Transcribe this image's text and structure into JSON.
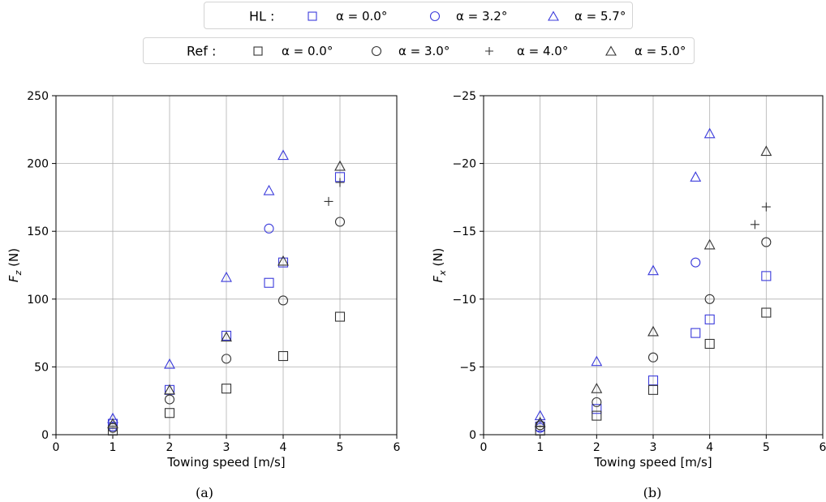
{
  "colors": {
    "hl": "#3b3bdb",
    "ref": "#333333",
    "grid": "#b0b0b0"
  },
  "legend": {
    "hl": {
      "group_label": "HL :",
      "entries": [
        {
          "marker": "square",
          "label": "α = 0.0°"
        },
        {
          "marker": "circle",
          "label": "α = 3.2°"
        },
        {
          "marker": "triangle",
          "label": "α = 5.7°"
        }
      ]
    },
    "ref": {
      "group_label": "Ref :",
      "entries": [
        {
          "marker": "square",
          "label": "α = 0.0°"
        },
        {
          "marker": "circle",
          "label": "α = 3.0°"
        },
        {
          "marker": "plus",
          "label": "α = 4.0°"
        },
        {
          "marker": "triangle",
          "label": "α = 5.0°"
        }
      ]
    }
  },
  "captions": {
    "a": "(a)",
    "b": "(b)"
  },
  "chart_data": [
    {
      "type": "scatter",
      "xlabel": "Towing speed [m/s]",
      "ylabel": "F_z (N)",
      "xlim": [
        0,
        6
      ],
      "ylim": [
        0,
        250
      ],
      "xticks": [
        "0",
        "1",
        "2",
        "3",
        "4",
        "5",
        "6"
      ],
      "yticks": [
        "0",
        "50",
        "100",
        "150",
        "200",
        "250"
      ],
      "grid": true,
      "series": [
        {
          "group": "HL",
          "marker": "square",
          "label": "α = 0.0°",
          "points": [
            [
              1,
              8
            ],
            [
              2,
              33
            ],
            [
              3,
              73
            ],
            [
              3.75,
              112
            ],
            [
              4,
              127
            ],
            [
              5,
              190
            ]
          ]
        },
        {
          "group": "HL",
          "marker": "circle",
          "label": "α = 3.2°",
          "points": [
            [
              1,
              6
            ],
            [
              3.75,
              152
            ]
          ]
        },
        {
          "group": "HL",
          "marker": "triangle",
          "label": "α = 5.7°",
          "points": [
            [
              1,
              12
            ],
            [
              2,
              52
            ],
            [
              3,
              116
            ],
            [
              3.75,
              180
            ],
            [
              4,
              206
            ]
          ]
        },
        {
          "group": "Ref",
          "marker": "square",
          "label": "α = 0.0°",
          "points": [
            [
              1,
              3
            ],
            [
              2,
              16
            ],
            [
              3,
              34
            ],
            [
              4,
              58
            ],
            [
              5,
              87
            ]
          ]
        },
        {
          "group": "Ref",
          "marker": "circle",
          "label": "α = 3.0°",
          "points": [
            [
              1,
              5
            ],
            [
              2,
              26
            ],
            [
              3,
              56
            ],
            [
              4,
              99
            ],
            [
              5,
              157
            ]
          ]
        },
        {
          "group": "Ref",
          "marker": "plus",
          "label": "α = 4.0°",
          "points": [
            [
              4.8,
              172
            ],
            [
              5,
              186
            ]
          ]
        },
        {
          "group": "Ref",
          "marker": "triangle",
          "label": "α = 5.0°",
          "points": [
            [
              1,
              8
            ],
            [
              2,
              33
            ],
            [
              3,
              72
            ],
            [
              4,
              128
            ],
            [
              5,
              198
            ]
          ]
        }
      ]
    },
    {
      "type": "scatter",
      "xlabel": "Towing speed [m/s]",
      "ylabel": "F_x (N)",
      "xlim": [
        0,
        6
      ],
      "ylim": [
        0,
        -25
      ],
      "xticks": [
        "0",
        "1",
        "2",
        "3",
        "4",
        "5",
        "6"
      ],
      "yticks": [
        "0",
        "−5",
        "−10",
        "−15",
        "−20",
        "−25"
      ],
      "grid": true,
      "series": [
        {
          "group": "HL",
          "marker": "square",
          "label": "α = 0.0°",
          "points": [
            [
              1,
              -0.6
            ],
            [
              2,
              -1.9
            ],
            [
              3,
              -4.0
            ],
            [
              3.75,
              -7.5
            ],
            [
              4,
              -8.5
            ],
            [
              5,
              -11.7
            ]
          ]
        },
        {
          "group": "HL",
          "marker": "circle",
          "label": "α = 3.2°",
          "points": [
            [
              1,
              -0.5
            ],
            [
              3.75,
              -12.7
            ]
          ]
        },
        {
          "group": "HL",
          "marker": "triangle",
          "label": "α = 5.7°",
          "points": [
            [
              1,
              -1.4
            ],
            [
              2,
              -5.4
            ],
            [
              3,
              -12.1
            ],
            [
              3.75,
              -19.0
            ],
            [
              4,
              -22.2
            ]
          ]
        },
        {
          "group": "Ref",
          "marker": "square",
          "label": "α = 0.0°",
          "points": [
            [
              1,
              -0.3
            ],
            [
              2,
              -1.4
            ],
            [
              3,
              -3.3
            ],
            [
              4,
              -6.7
            ],
            [
              5,
              -9.0
            ]
          ]
        },
        {
          "group": "Ref",
          "marker": "circle",
          "label": "α = 3.0°",
          "points": [
            [
              1,
              -0.7
            ],
            [
              2,
              -2.4
            ],
            [
              3,
              -5.7
            ],
            [
              4,
              -10.0
            ],
            [
              5,
              -14.2
            ]
          ]
        },
        {
          "group": "Ref",
          "marker": "plus",
          "label": "α = 4.0°",
          "points": [
            [
              4.8,
              -15.5
            ],
            [
              5,
              -16.8
            ]
          ]
        },
        {
          "group": "Ref",
          "marker": "triangle",
          "label": "α = 5.0°",
          "points": [
            [
              1,
              -0.9
            ],
            [
              2,
              -3.4
            ],
            [
              3,
              -7.6
            ],
            [
              4,
              -14.0
            ],
            [
              5,
              -20.9
            ]
          ]
        }
      ]
    }
  ]
}
